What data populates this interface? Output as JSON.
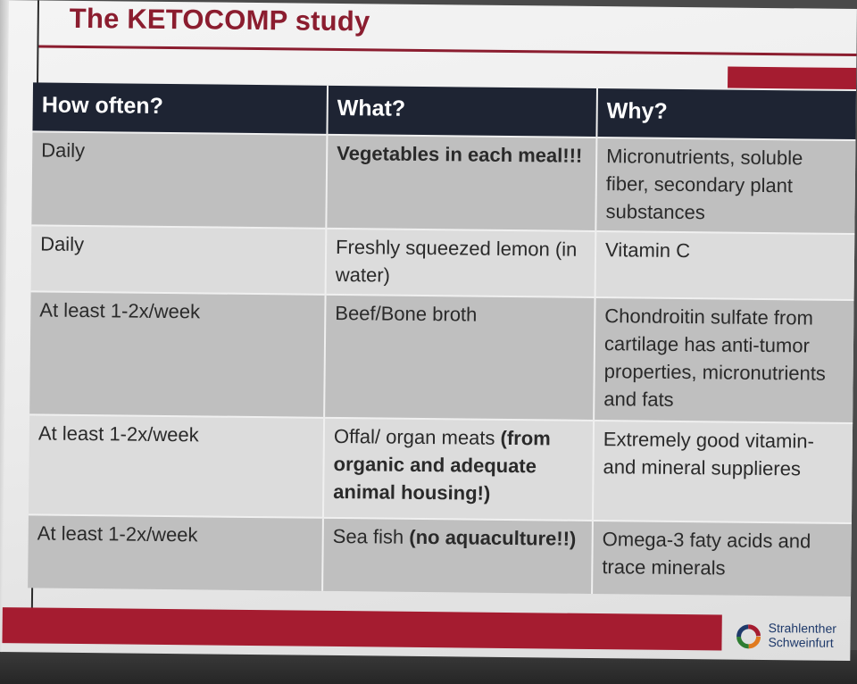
{
  "title": "The KETOCOMP study",
  "table": {
    "headers": [
      "How often?",
      "What?",
      "Why?"
    ],
    "rows": [
      {
        "often": "Daily",
        "what": [
          {
            "text": "Vegetables in each meal!!!",
            "bold": true
          }
        ],
        "why": "Micronutrients, soluble fiber, secondary plant substances"
      },
      {
        "often": "Daily",
        "what": [
          {
            "text": "Freshly squeezed lemon (in water)",
            "bold": false
          }
        ],
        "why": "Vitamin C"
      },
      {
        "often": "At least 1-2x/week",
        "what": [
          {
            "text": "Beef/Bone broth",
            "bold": false
          }
        ],
        "why": "Chondroitin sulfate from cartilage has anti-tumor properties, micronutrients and fats"
      },
      {
        "often": "At least 1-2x/week",
        "what": [
          {
            "text": "Offal/ organ meats ",
            "bold": false
          },
          {
            "text": "(from organic and adequate animal housing!)",
            "bold": true
          }
        ],
        "why": "Extremely good vitamin- and mineral supplieres"
      },
      {
        "often": "At least 1-2x/week",
        "what": [
          {
            "text": "Sea fish ",
            "bold": false
          },
          {
            "text": "(no aquaculture!!)",
            "bold": true
          }
        ],
        "why": "Omega-3 faty acids and trace minerals"
      }
    ]
  },
  "logo": {
    "line1": "Strahlenther",
    "line2": "Schweinfurt"
  },
  "colors": {
    "brand": "#a51c30",
    "header_bg": "#1e2433"
  }
}
